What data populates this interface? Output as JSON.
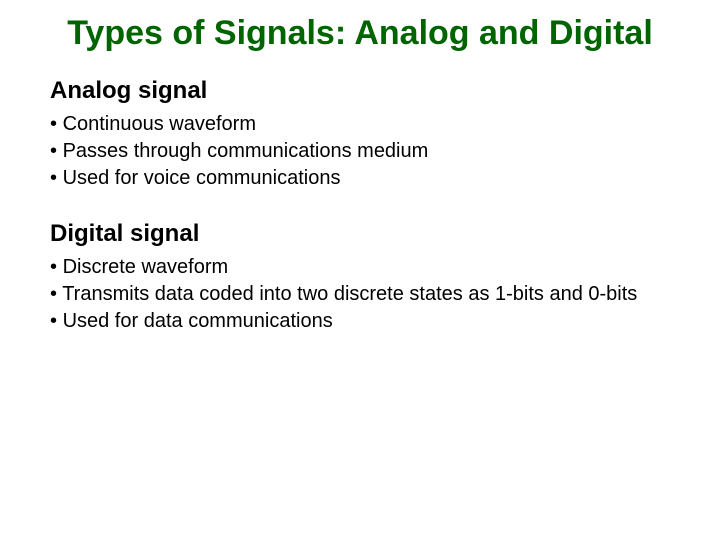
{
  "title": "Types of Signals: Analog and Digital",
  "sections": [
    {
      "heading": "Analog signal",
      "bullets": [
        "Continuous waveform",
        "Passes through communications medium",
        "Used for voice communications"
      ]
    },
    {
      "heading": "Digital signal",
      "bullets": [
        "Discrete waveform",
        "Transmits data coded into two discrete states as 1-bits and 0-bits",
        "Used for data communications"
      ]
    }
  ],
  "colors": {
    "title_color": "#006400",
    "text_color": "#000000",
    "background": "#ffffff"
  },
  "typography": {
    "title_fontsize": 34,
    "heading_fontsize": 24,
    "body_fontsize": 20,
    "font_family": "Arial"
  }
}
